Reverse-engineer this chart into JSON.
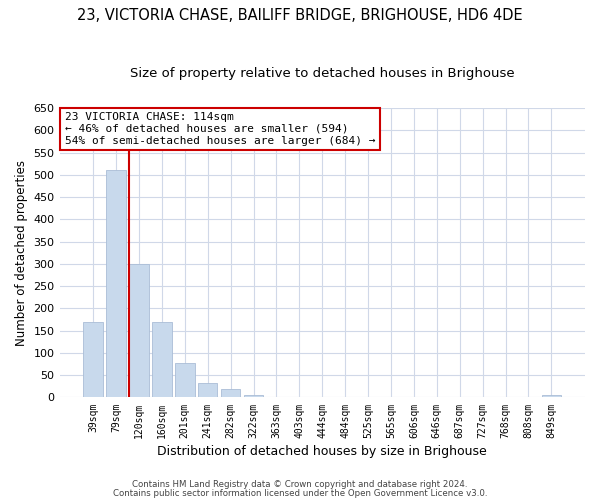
{
  "title": "23, VICTORIA CHASE, BAILIFF BRIDGE, BRIGHOUSE, HD6 4DE",
  "subtitle": "Size of property relative to detached houses in Brighouse",
  "xlabel": "Distribution of detached houses by size in Brighouse",
  "ylabel": "Number of detached properties",
  "bar_labels": [
    "39sqm",
    "79sqm",
    "120sqm",
    "160sqm",
    "201sqm",
    "241sqm",
    "282sqm",
    "322sqm",
    "363sqm",
    "403sqm",
    "444sqm",
    "484sqm",
    "525sqm",
    "565sqm",
    "606sqm",
    "646sqm",
    "687sqm",
    "727sqm",
    "768sqm",
    "808sqm",
    "849sqm"
  ],
  "bar_values": [
    170,
    510,
    300,
    170,
    78,
    32,
    20,
    5,
    0,
    0,
    0,
    0,
    0,
    0,
    0,
    0,
    0,
    0,
    0,
    0,
    5
  ],
  "bar_color": "#c8d9ec",
  "bar_edge_color": "#aabdd6",
  "vline_x_idx": 2,
  "vline_color": "#cc0000",
  "ylim": [
    0,
    650
  ],
  "yticks": [
    0,
    50,
    100,
    150,
    200,
    250,
    300,
    350,
    400,
    450,
    500,
    550,
    600,
    650
  ],
  "annotation_title": "23 VICTORIA CHASE: 114sqm",
  "annotation_line1": "← 46% of detached houses are smaller (594)",
  "annotation_line2": "54% of semi-detached houses are larger (684) →",
  "annotation_box_color": "#ffffff",
  "annotation_box_edge_color": "#cc0000",
  "footer1": "Contains HM Land Registry data © Crown copyright and database right 2024.",
  "footer2": "Contains public sector information licensed under the Open Government Licence v3.0.",
  "background_color": "#ffffff",
  "grid_color": "#d0d8e8",
  "title_fontsize": 10.5,
  "subtitle_fontsize": 9.5,
  "xlabel_fontsize": 9,
  "ylabel_fontsize": 8.5
}
